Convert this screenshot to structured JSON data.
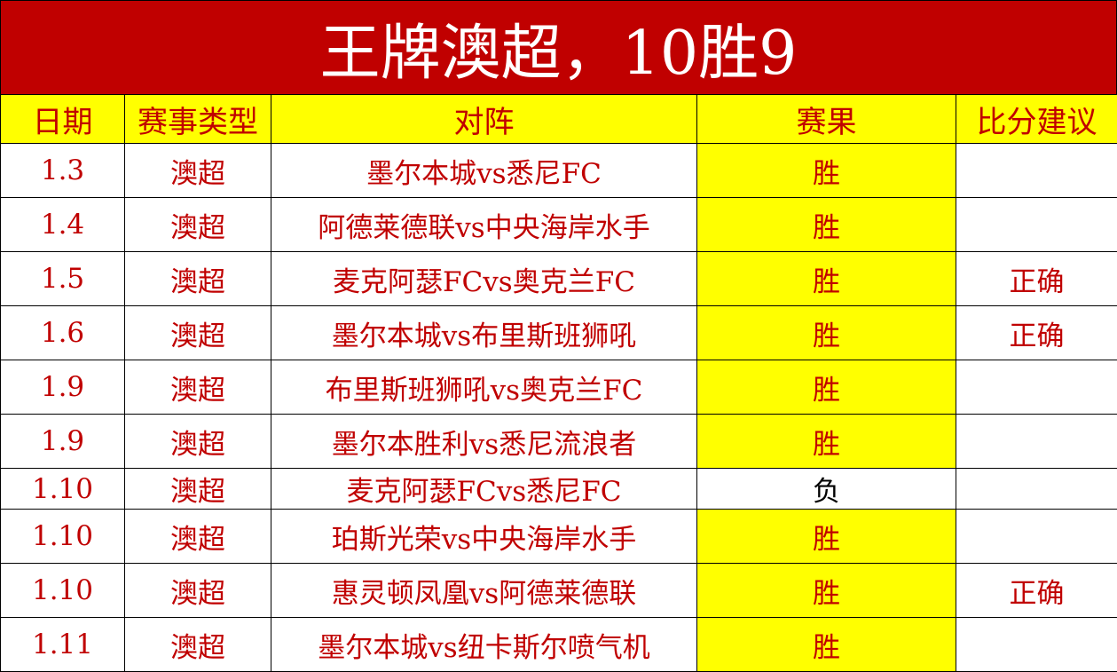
{
  "title": "王牌澳超，10胜9",
  "headers": [
    "日期",
    "赛事类型",
    "对阵",
    "赛果",
    "比分建议"
  ],
  "rows": [
    {
      "date": "1.3",
      "type": "澳超",
      "match": "墨尔本城vs悉尼FC",
      "result": "胜",
      "tip": ""
    },
    {
      "date": "1.4",
      "type": "澳超",
      "match": "阿德莱德联vs中央海岸水手",
      "result": "胜",
      "tip": ""
    },
    {
      "date": "1.5",
      "type": "澳超",
      "match": "麦克阿瑟FCvs奥克兰FC",
      "result": "胜",
      "tip": "正确"
    },
    {
      "date": "1.6",
      "type": "澳超",
      "match": "墨尔本城vs布里斯班狮吼",
      "result": "胜",
      "tip": "正确"
    },
    {
      "date": "1.9",
      "type": "澳超",
      "match": "布里斯班狮吼vs奥克兰FC",
      "result": "胜",
      "tip": ""
    },
    {
      "date": "1.9",
      "type": "澳超",
      "match": "墨尔本胜利vs悉尼流浪者",
      "result": "胜",
      "tip": ""
    },
    {
      "date": "1.10",
      "type": "澳超",
      "match": "麦克阿瑟FCvs悉尼FC",
      "result": "负",
      "tip": ""
    },
    {
      "date": "1.10",
      "type": "澳超",
      "match": "珀斯光荣vs中央海岸水手",
      "result": "胜",
      "tip": ""
    },
    {
      "date": "1.10",
      "type": "澳超",
      "match": "惠灵顿凤凰vs阿德莱德联",
      "result": "胜",
      "tip": "正确"
    },
    {
      "date": "1.11",
      "type": "澳超",
      "match": "墨尔本城vs纽卡斯尔喷气机",
      "result": "胜",
      "tip": ""
    }
  ],
  "colors": {
    "title_bg": "#c00000",
    "header_bg": "#ffff00",
    "text": "#c00000",
    "win_bg": "#ffff00"
  }
}
